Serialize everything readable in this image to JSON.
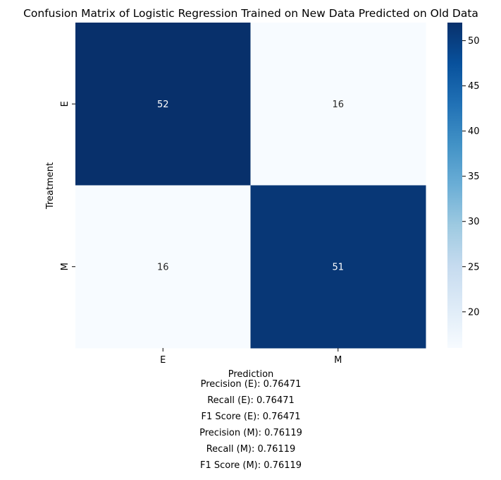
{
  "chart_data": {
    "type": "heatmap",
    "title": "Confusion Matrix of Logistic Regression Trained on New Data Predicted on Old Data",
    "xlabel": "Prediction",
    "ylabel": "Treatment",
    "x_categories": [
      "E",
      "M"
    ],
    "y_categories": [
      "E",
      "M"
    ],
    "values": [
      [
        52,
        16
      ],
      [
        16,
        51
      ]
    ],
    "colormap": "Blues",
    "colorbar": {
      "range": [
        16,
        52
      ],
      "ticks": [
        20,
        25,
        30,
        35,
        40,
        45,
        50
      ],
      "tick_labels": [
        "20",
        "25",
        "30",
        "35",
        "40",
        "45",
        "50"
      ],
      "low_color": "#f7fbff",
      "high_color": "#08306b"
    },
    "annotation_colors": {
      "on_dark": "#ffffff",
      "on_light": "#262626"
    }
  },
  "metrics": [
    "Precision (E): 0.76471",
    "Recall (E): 0.76471",
    "F1 Score (E): 0.76471",
    "Precision (M): 0.76119",
    "Recall (M): 0.76119",
    "F1 Score (M): 0.76119"
  ]
}
